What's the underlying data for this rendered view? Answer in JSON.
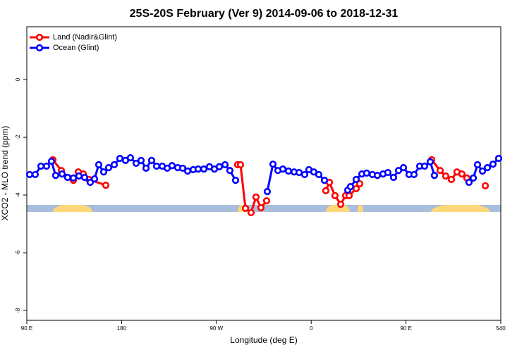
{
  "chart_data": {
    "type": "line",
    "title": "25S-20S February (Ver 9)   2014-09-06 to 2018-12-31",
    "x_label": "Longitude (deg E)",
    "y_label": "XCO2 - MLO trend (ppm)",
    "xlim": [
      90,
      540
    ],
    "xticks": [
      {
        "value": 90,
        "label": "90 E"
      },
      180,
      {
        "value": 270,
        "label": "90 W"
      },
      {
        "value": 360,
        "label": "0"
      },
      {
        "value": 450,
        "label": "90 E"
      },
      540
    ],
    "ylim": [
      -8.34,
      1.83
    ],
    "yticks": [
      0,
      -2,
      -4,
      -6,
      -8
    ],
    "legend": "top-left",
    "series": [
      {
        "name": "Land (Nadir&Glint)",
        "color": "#ff0000",
        "x": [
          114.8,
          122.8,
          128.8,
          134.2,
          138.9,
          143.6,
          148.9,
          165.0,
          null,
          290.2,
          292.9,
          297.6,
          302.9,
          307.6,
          312.3,
          317.7,
          null,
          373.9,
          377.3,
          382.6,
          388.0,
          392.7,
          396.0,
          402.7,
          406.1,
          null,
          474.4,
          482.4,
          487.7,
          493.1,
          498.4,
          503.1,
          507.8,
          null,
          525.3
        ],
        "values": [
          -2.78,
          -3.15,
          -3.39,
          -3.49,
          -3.2,
          -3.27,
          -3.46,
          -3.66,
          null,
          -2.95,
          -2.95,
          -4.46,
          -4.61,
          -4.07,
          -4.44,
          -4.2,
          null,
          -3.85,
          -3.56,
          -4.02,
          -4.32,
          -4.02,
          -4.02,
          -3.78,
          -3.61,
          null,
          -2.78,
          -3.15,
          -3.34,
          -3.46,
          -3.2,
          -3.27,
          -3.41,
          null,
          -3.68
        ]
      },
      {
        "name": "Ocean (Glint)",
        "color": "#0000ff",
        "x": [
          92.7,
          98.0,
          103.4,
          108.7,
          113.4,
          117.4,
          123.5,
          128.8,
          134.2,
          139.5,
          144.9,
          150.2,
          154.3,
          158.3,
          163.0,
          167.7,
          173.0,
          178.4,
          183.7,
          188.4,
          193.8,
          198.5,
          203.2,
          208.5,
          213.2,
          218.6,
          223.3,
          227.9,
          233.3,
          238.0,
          242.7,
          248.0,
          252.7,
          258.1,
          263.4,
          268.1,
          272.8,
          278.2,
          282.8,
          288.2,
          null,
          318.3,
          323.7,
          328.4,
          333.1,
          338.4,
          343.8,
          348.5,
          353.8,
          357.8,
          362.5,
          367.2,
          372.6,
          null,
          394.7,
          397.3,
          402.7,
          408.1,
          412.7,
          418.1,
          422.8,
          428.2,
          432.8,
          438.2,
          442.9,
          447.6,
          452.9,
          457.6,
          463.0,
          467.7,
          473.0,
          477.0,
          null,
          509.8,
          513.9,
          517.9,
          522.6,
          527.3,
          532.6,
          538.0
        ],
        "values": [
          -3.29,
          -3.29,
          -3.0,
          -3.0,
          -2.83,
          -3.32,
          -3.27,
          -3.39,
          -3.41,
          -3.34,
          -3.39,
          -3.56,
          -3.44,
          -2.95,
          -3.2,
          -3.05,
          -2.95,
          -2.73,
          -2.8,
          -2.71,
          -2.9,
          -2.8,
          -3.07,
          -2.8,
          -3.0,
          -3.0,
          -3.07,
          -2.98,
          -3.05,
          -3.07,
          -3.17,
          -3.12,
          -3.1,
          -3.1,
          -3.02,
          -3.1,
          -3.02,
          -2.95,
          -3.15,
          -3.49,
          null,
          -3.88,
          -2.93,
          -3.15,
          -3.1,
          -3.17,
          -3.2,
          -3.22,
          -3.29,
          -3.12,
          -3.2,
          -3.29,
          -3.49,
          null,
          -3.83,
          -3.71,
          -3.46,
          -3.27,
          -3.24,
          -3.29,
          -3.32,
          -3.27,
          -3.22,
          -3.39,
          -3.15,
          -3.05,
          -3.29,
          -3.29,
          -3.0,
          -3.0,
          -2.85,
          -3.32,
          null,
          -3.56,
          -3.41,
          -2.95,
          -3.17,
          -3.05,
          -2.93,
          -2.73
        ]
      }
    ]
  }
}
